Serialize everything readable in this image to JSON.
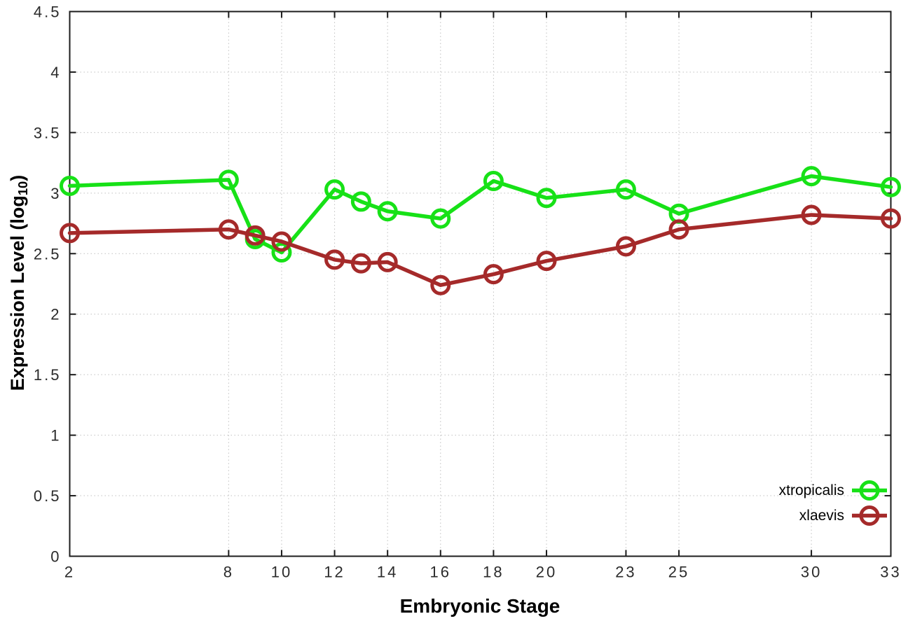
{
  "page": {
    "background": "#ffffff"
  },
  "chart_data": {
    "type": "line",
    "title": "",
    "xlabel": "Embryonic Stage",
    "ylabel": "Expression Level (log10)",
    "ylabel_parts": {
      "main": "Expression Level (log",
      "sub": "10",
      "suffix": ")"
    },
    "marker": "open-circle",
    "grid": true,
    "legend_position": "bottom-right-inside",
    "xlim": [
      2,
      33
    ],
    "ylim": [
      0,
      4.5
    ],
    "x": [
      2,
      8,
      9,
      10,
      12,
      13,
      14,
      16,
      18,
      20,
      23,
      25,
      30,
      33
    ],
    "xticks": [
      2,
      8,
      10,
      12,
      14,
      16,
      18,
      20,
      23,
      25,
      30,
      33
    ],
    "yticks": [
      0,
      0.5,
      1,
      1.5,
      2,
      2.5,
      3,
      3.5,
      4,
      4.5
    ],
    "ytick_labels": [
      "0",
      "0.5",
      "1",
      "1.5",
      "2",
      "2.5",
      "3",
      "3.5",
      "4",
      "4.5"
    ],
    "series": [
      {
        "name": "xtropicalis",
        "color": "#17e117",
        "values": [
          3.06,
          3.11,
          2.62,
          2.51,
          3.03,
          2.93,
          2.85,
          2.79,
          3.1,
          2.96,
          3.03,
          2.83,
          3.14,
          3.05
        ]
      },
      {
        "name": "xlaevis",
        "color": "#a52a2a",
        "values": [
          2.67,
          2.7,
          2.65,
          2.6,
          2.45,
          2.42,
          2.43,
          2.24,
          2.33,
          2.44,
          2.56,
          2.7,
          2.82,
          2.79
        ]
      }
    ]
  },
  "style": {
    "grid_color": "#c0c0c0",
    "border_color": "#1c1c1c",
    "tick_color": "#1c1c1c",
    "tick_label_color": "#2b2b2b"
  }
}
